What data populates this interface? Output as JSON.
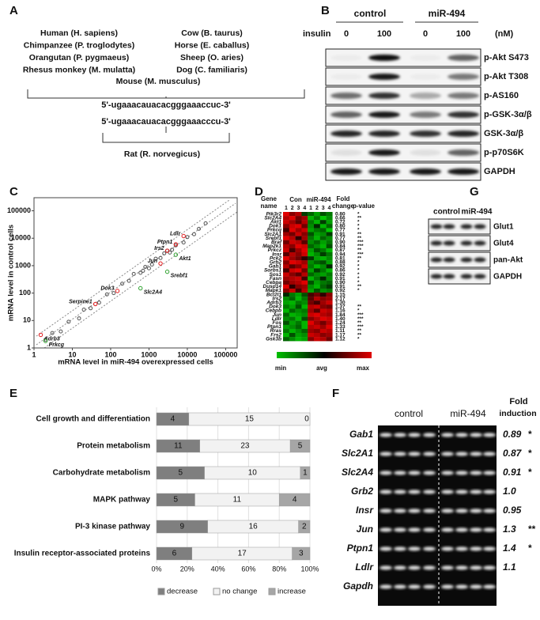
{
  "panels": {
    "A": {
      "label": "A",
      "species_left": [
        "Human (H. sapiens)",
        "Chimpanzee (P. troglodytes)",
        "Orangutan (P. pygmaeus)",
        "Rhesus monkey (M. mulatta)"
      ],
      "species_right": [
        "Cow (B. taurus)",
        "Horse (E. caballus)",
        "Sheep (O. aries)",
        "Dog (C. familiaris)"
      ],
      "mouse": "Mouse (M. musculus)",
      "seq1": "5'-ugaaacauacacgggaaaccuc-3'",
      "seq2": "5'-ugaaacauacacgggaaacccu-3'",
      "rat": "Rat (R. norvegicus)"
    },
    "B": {
      "label": "B",
      "groups": [
        "control",
        "miR-494"
      ],
      "insulin": "insulin",
      "doses": [
        "0",
        "100",
        "0",
        "100"
      ],
      "unit": "(nM)",
      "blots": [
        "p-Akt S473",
        "p-Akt T308",
        "p-AS160",
        "p-GSK-3α/β",
        "GSK-3α/β",
        "p-p70S6K",
        "GAPDH"
      ]
    },
    "D": {
      "label": "D",
      "gene_header": [
        "Gene",
        "name"
      ],
      "con": "Con",
      "mir": "miR-494",
      "fold_header": [
        "Fold",
        "change"
      ],
      "p_header": "p-value",
      "lanes": [
        "1",
        "2",
        "3",
        "4",
        "1",
        "2",
        "3",
        "4"
      ],
      "scale": [
        "min",
        "avg",
        "max"
      ],
      "rows": [
        {
          "gene": "Pik3r2",
          "fold": "0.80",
          "p": "*",
          "cells": [
            1,
            0.6,
            0.8,
            -0.3,
            -0.5,
            -0.8,
            -0.4,
            -0.6
          ]
        },
        {
          "gene": "Slc2A4",
          "fold": "0.66",
          "p": "**",
          "cells": [
            0.8,
            1,
            0.5,
            0.7,
            -0.9,
            -0.6,
            -1,
            -0.7
          ]
        },
        {
          "gene": "Akt1",
          "fold": "0.72",
          "p": "*",
          "cells": [
            0.9,
            0.7,
            0.4,
            0.8,
            -0.6,
            -0.9,
            -0.3,
            -0.8
          ]
        },
        {
          "gene": "Dok1",
          "fold": "0.80",
          "p": "*",
          "cells": [
            0.6,
            0.9,
            1,
            0.5,
            -0.7,
            -0.2,
            -0.9,
            -0.5
          ]
        },
        {
          "gene": "Prkcq",
          "fold": "0.77",
          "p": "*",
          "cells": [
            0.3,
            1,
            0.7,
            0.9,
            -0.8,
            -0.6,
            -0.5,
            -1
          ]
        },
        {
          "gene": "Slc2A1",
          "fold": "0.91",
          "p": "**",
          "cells": [
            0.7,
            0.5,
            0.9,
            0.6,
            -0.4,
            -0.8,
            -0.7,
            -0.3
          ]
        },
        {
          "gene": "Srebf1",
          "fold": "0.77",
          "p": "**",
          "cells": [
            1,
            0.8,
            0.2,
            0.7,
            -0.6,
            -0.9,
            -0.5,
            -0.7
          ]
        },
        {
          "gene": "Braf",
          "fold": "0.90",
          "p": "***",
          "cells": [
            0.5,
            0.9,
            0.8,
            0.4,
            -0.7,
            -0.5,
            -0.8,
            -0.6
          ]
        },
        {
          "gene": "Map2k1",
          "fold": "0.84",
          "p": "***",
          "cells": [
            0.8,
            0.6,
            1,
            0.9,
            -0.5,
            -0.7,
            -0.9,
            -0.4
          ]
        },
        {
          "gene": "Prkcz",
          "fold": "0.87",
          "p": "**",
          "cells": [
            0.9,
            0.3,
            0.7,
            1,
            -0.8,
            -0.4,
            -0.6,
            -0.9
          ]
        },
        {
          "gene": "Insr",
          "fold": "0.94",
          "p": "***",
          "cells": [
            0.4,
            0.8,
            0.6,
            0.9,
            -0.9,
            -0.7,
            -0.3,
            -0.6
          ]
        },
        {
          "gene": "Pck2",
          "fold": "0.81",
          "p": "**",
          "cells": [
            1,
            0.7,
            0.5,
            0.2,
            -0.3,
            -0.8,
            -0.9,
            -0.7
          ]
        },
        {
          "gene": "Grb2",
          "fold": "0.88",
          "p": "*",
          "cells": [
            0.6,
            1,
            0.9,
            0.7,
            -0.7,
            -0.5,
            -0.4,
            -0.8
          ]
        },
        {
          "gene": "Gab1",
          "fold": "0.92",
          "p": "*",
          "cells": [
            0.8,
            0.4,
            0.6,
            0.9,
            -0.6,
            -0.9,
            -0.7,
            -0.2
          ]
        },
        {
          "gene": "Sorbs1",
          "fold": "0.86",
          "p": "*",
          "cells": [
            0.3,
            0.9,
            1,
            0.5,
            -0.8,
            -0.3,
            -0.6,
            -0.9
          ]
        },
        {
          "gene": "Sos1",
          "fold": "0.92",
          "p": "*",
          "cells": [
            0.9,
            0.6,
            0.4,
            0.8,
            -0.5,
            -0.7,
            -0.8,
            -0.6
          ]
        },
        {
          "gene": "Fasn",
          "fold": "0.91",
          "p": "*",
          "cells": [
            0.7,
            0.8,
            0.9,
            0.3,
            -0.9,
            -0.6,
            -0.2,
            -0.7
          ]
        },
        {
          "gene": "Cebpa",
          "fold": "0.90",
          "p": "*",
          "cells": [
            0.5,
            0.7,
            0.8,
            1,
            -0.4,
            -0.8,
            -0.6,
            -0.5
          ]
        },
        {
          "gene": "Dusp14",
          "fold": "0.91",
          "p": "**",
          "cells": [
            1,
            0.2,
            0.6,
            0.7,
            -0.7,
            -0.9,
            -0.5,
            -0.3
          ]
        },
        {
          "gene": "Mapk1",
          "fold": "0.92",
          "p": "*",
          "cells": [
            0.6,
            0.9,
            0.3,
            0.8,
            -0.8,
            -0.4,
            -0.7,
            -0.6
          ]
        },
        {
          "gene": "Bcl2l1",
          "fold": "1.15",
          "cells": [
            -0.2,
            -0.6,
            -0.8,
            -0.4,
            0.3,
            0.5,
            0.2,
            0.6
          ]
        },
        {
          "gene": "Irs2",
          "fold": "2.17",
          "cells": [
            -0.7,
            -0.5,
            -0.9,
            -0.6,
            0.4,
            0.8,
            0.6,
            0.7
          ]
        },
        {
          "gene": "Adrb3",
          "fold": "1.30",
          "cells": [
            -0.8,
            -0.9,
            -0.6,
            -0.7,
            0.5,
            0.3,
            0.7,
            0.9
          ]
        },
        {
          "gene": "Dok3",
          "fold": "1.37",
          "p": "**",
          "cells": [
            -0.6,
            -0.8,
            -0.4,
            -0.9,
            0.8,
            0.9,
            0.6,
            0.5
          ]
        },
        {
          "gene": "Cebpb",
          "fold": "1.16",
          "p": "*",
          "cells": [
            -0.9,
            -0.5,
            -0.7,
            -0.6,
            0.7,
            0.4,
            0.9,
            0.8
          ]
        },
        {
          "gene": "Jun",
          "fold": "1.84",
          "p": "***",
          "cells": [
            -0.5,
            -0.9,
            -0.8,
            -0.7,
            0.9,
            1,
            0.8,
            0.7
          ]
        },
        {
          "gene": "Ldlr",
          "fold": "1.40",
          "p": "***",
          "cells": [
            -0.7,
            -0.6,
            -0.9,
            -0.4,
            0.6,
            0.8,
            1,
            0.9
          ]
        },
        {
          "gene": "Fos",
          "fold": "1.24",
          "p": "**",
          "cells": [
            -0.4,
            -0.8,
            -0.6,
            -0.9,
            1,
            0.7,
            0.5,
            0.8
          ]
        },
        {
          "gene": "Ptpn1",
          "fold": "1.33",
          "p": "***",
          "cells": [
            -0.8,
            -0.7,
            -0.5,
            -0.9,
            0.8,
            0.9,
            0.7,
            1
          ]
        },
        {
          "gene": "Rras",
          "fold": "1.11",
          "p": "**",
          "cells": [
            -0.6,
            -0.9,
            -0.7,
            -0.5,
            0.7,
            0.6,
            0.9,
            0.8
          ]
        },
        {
          "gene": "Frs2",
          "fold": "1.17",
          "p": "**",
          "cells": [
            -0.9,
            -0.4,
            -0.8,
            -0.7,
            0.9,
            0.8,
            0.6,
            0.7
          ]
        },
        {
          "gene": "Gsk3b",
          "fold": "1.12",
          "p": "*",
          "cells": [
            -0.5,
            -0.7,
            -0.9,
            -0.8,
            0.6,
            0.9,
            0.8,
            0.5
          ]
        }
      ]
    },
    "F": {
      "label": "F",
      "groups": [
        "control",
        "miR-494"
      ],
      "fold_header": [
        "Fold",
        "induction"
      ],
      "rows": [
        {
          "gene": "Gab1",
          "fold": "0.89",
          "sig": "*"
        },
        {
          "gene": "Slc2A1",
          "fold": "0.87",
          "sig": "*"
        },
        {
          "gene": "Slc2A4",
          "fold": "0.91",
          "sig": "*"
        },
        {
          "gene": "Grb2",
          "fold": "1.0"
        },
        {
          "gene": "Insr",
          "fold": "0.95"
        },
        {
          "gene": "Jun",
          "fold": "1.3",
          "sig": "**"
        },
        {
          "gene": "Ptpn1",
          "fold": "1.4",
          "sig": "*"
        },
        {
          "gene": "Ldlr",
          "fold": "1.1"
        },
        {
          "gene": "Gapdh"
        }
      ]
    },
    "G": {
      "label": "G",
      "groups": [
        "control",
        "miR-494"
      ],
      "blots": [
        "Glut1",
        "Glut4",
        "pan-Akt",
        "GAPDH"
      ]
    }
  },
  "chart_data": [
    {
      "type": "scatter",
      "label": "C",
      "x_label": "mRNA level in miR-494 overexpressed cells",
      "y_label": "mRNA level in control cells",
      "log_x": true,
      "log_y": true,
      "xlim": [
        1,
        200000
      ],
      "ylim": [
        1,
        300000
      ],
      "xticks": [
        1,
        10,
        100,
        1000,
        10000,
        100000
      ],
      "yticks": [
        1,
        10,
        100,
        1000,
        10000,
        100000
      ],
      "points": {
        "color": "#555555",
        "x": [
          2,
          3,
          5,
          8,
          15,
          20,
          30,
          50,
          80,
          120,
          200,
          300,
          400,
          600,
          800,
          1200,
          1500,
          2000,
          2500,
          3000,
          4000,
          5000,
          8000,
          10000,
          15000,
          20000,
          30000,
          1000,
          700,
          3500
        ],
        "y": [
          2,
          3.5,
          4,
          9,
          12,
          25,
          28,
          45,
          90,
          100,
          220,
          280,
          500,
          550,
          900,
          1100,
          1800,
          1900,
          2800,
          3500,
          3800,
          5500,
          7000,
          11000,
          14000,
          22000,
          35000,
          800,
          650,
          3000
        ]
      },
      "highlights": [
        {
          "name": "Ldlr",
          "x": 8000,
          "y": 12000,
          "color": "#e31a1c"
        },
        {
          "name": "Ptpn1",
          "x": 5000,
          "y": 6000,
          "color": "#e31a1c"
        },
        {
          "name": "Irs2",
          "x": 3000,
          "y": 3500,
          "color": "#e31a1c"
        },
        {
          "name": "Jun",
          "x": 2000,
          "y": 1200,
          "color": "#e31a1c"
        },
        {
          "name": "Akt1",
          "x": 5000,
          "y": 2500,
          "color": "#2ca02c"
        },
        {
          "name": "Srebf1",
          "x": 3000,
          "y": 600,
          "color": "#2ca02c"
        },
        {
          "name": "Dok3",
          "x": 150,
          "y": 120,
          "color": "#e31a1c"
        },
        {
          "name": "Slc2A4",
          "x": 600,
          "y": 150,
          "color": "#2ca02c"
        },
        {
          "name": "Serpine1",
          "x": 40,
          "y": 40,
          "color": "#e31a1c"
        },
        {
          "name": "Adrb3",
          "x": 1.5,
          "y": 3,
          "color": "#e31a1c"
        },
        {
          "name": "Prkcg",
          "x": 2,
          "y": 1.8,
          "color": "#2ca02c"
        }
      ]
    },
    {
      "type": "bar",
      "orientation": "horizontal",
      "stacked": true,
      "label": "E",
      "categories": [
        "Cell growth and differentiation",
        "Protein metabolism",
        "Carbohydrate metabolism",
        "MAPK pathway",
        "PI-3 kinase pathway",
        "Insulin receptor-associated proteins"
      ],
      "series": [
        {
          "name": "decrease",
          "color": "#7f7f7f",
          "values": [
            4,
            11,
            5,
            5,
            9,
            6
          ]
        },
        {
          "name": "no change",
          "color": "#f2f2f2",
          "values": [
            15,
            23,
            10,
            11,
            16,
            17
          ]
        },
        {
          "name": "increase",
          "color": "#a6a6a6",
          "values": [
            0,
            5,
            1,
            4,
            2,
            3
          ]
        }
      ],
      "xlim": [
        0,
        100
      ],
      "xticks": [
        {
          "value": 0,
          "label": "0%"
        },
        {
          "value": 20,
          "label": "20%"
        },
        {
          "value": 40,
          "label": "40%"
        },
        {
          "value": 60,
          "label": "60%"
        },
        {
          "value": 80,
          "label": "80%"
        },
        {
          "value": 100,
          "label": "100%"
        }
      ]
    }
  ]
}
